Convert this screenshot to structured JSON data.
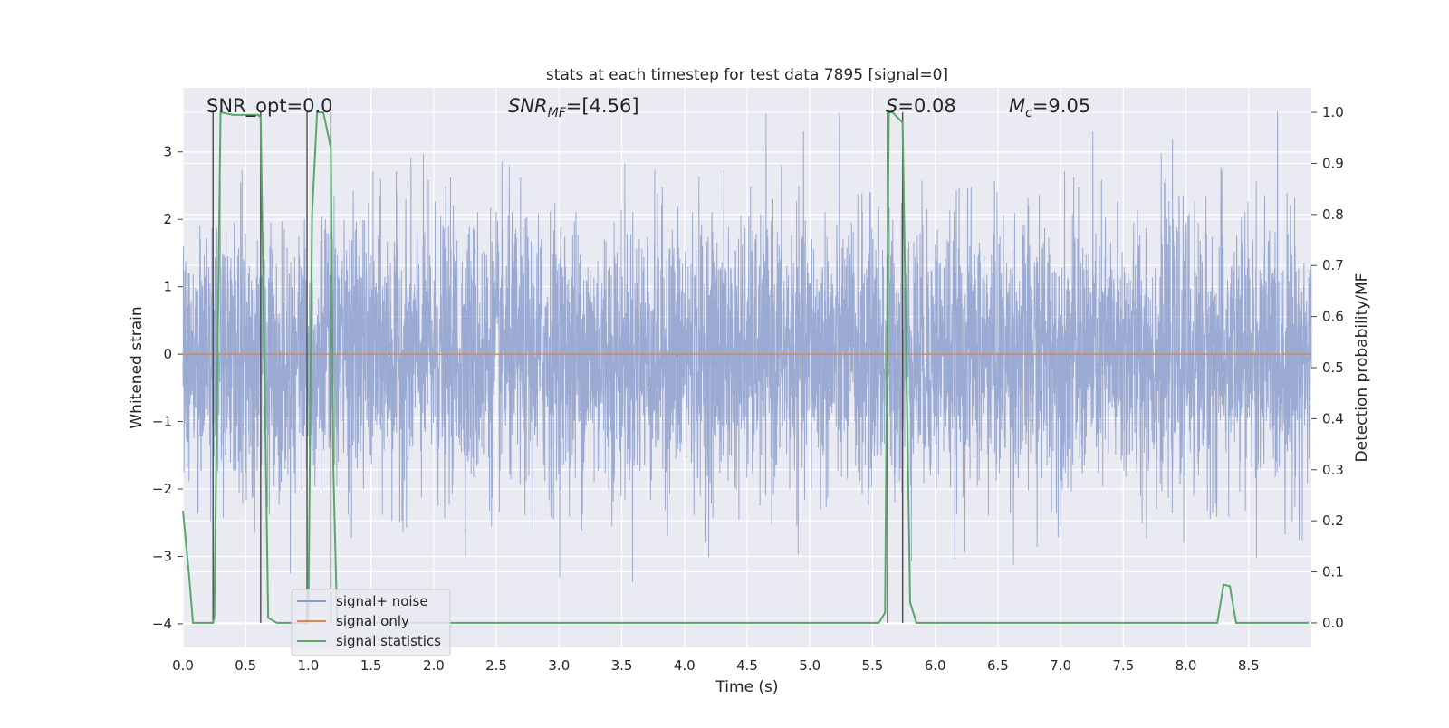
{
  "chart_data": {
    "type": "line",
    "title": "stats at each timestep for test data 7895 [signal=0]",
    "xlabel": "Time (s)",
    "ylabel_left": "Whitened strain",
    "ylabel_right": "Detection probability/MF",
    "xlim": [
      0.0,
      9.0
    ],
    "ylim_left": [
      -4.35,
      3.95
    ],
    "ylim_right": [
      -0.048,
      1.048
    ],
    "grid": true,
    "legend_position": "lower-left",
    "x_ticks": [
      "0.0",
      "0.5",
      "1.0",
      "1.5",
      "2.0",
      "2.5",
      "3.0",
      "3.5",
      "4.0",
      "4.5",
      "5.0",
      "5.5",
      "6.0",
      "6.5",
      "7.0",
      "7.5",
      "8.0",
      "8.5"
    ],
    "y_left_ticks": [
      "3",
      "2",
      "1",
      "0",
      "−1",
      "−2",
      "−3",
      "−4"
    ],
    "y_right_ticks": [
      "1.0",
      "0.9",
      "0.8",
      "0.7",
      "0.6",
      "0.5",
      "0.4",
      "0.3",
      "0.2",
      "0.1",
      "0.0"
    ],
    "annotations": {
      "snr_opt": "SNR_opt=0.0",
      "snr_mf_label": "SNR",
      "snr_mf_sub": "MF",
      "snr_mf_value": "=[4.56]",
      "s_label": "S",
      "s_value": "=0.08",
      "mc_label": "M",
      "mc_sub": "c",
      "mc_value": "=9.05"
    },
    "series": [
      {
        "name": "signal+ noise",
        "color": "#8c9fcc",
        "description": "whitened strain noise, approx range -3.6 to 3.6",
        "noise_amplitude": 1.0,
        "noise_max": 3.6
      },
      {
        "name": "signal only",
        "color": "#dd8452",
        "values_constant": 0.0
      },
      {
        "name": "signal statistics",
        "color": "#55a868",
        "axis": "right",
        "points": [
          [
            0.0,
            0.22
          ],
          [
            0.05,
            0.09
          ],
          [
            0.08,
            0.0
          ],
          [
            0.15,
            0.0
          ],
          [
            0.24,
            0.0
          ],
          [
            0.25,
            0.01
          ],
          [
            0.3,
            1.0
          ],
          [
            0.4,
            0.995
          ],
          [
            0.5,
            0.995
          ],
          [
            0.6,
            0.995
          ],
          [
            0.62,
            0.99
          ],
          [
            0.68,
            0.01
          ],
          [
            0.75,
            0.0
          ],
          [
            1.0,
            0.0
          ],
          [
            1.03,
            0.8
          ],
          [
            1.07,
            1.0
          ],
          [
            1.12,
            1.0
          ],
          [
            1.18,
            0.93
          ],
          [
            1.2,
            0.3
          ],
          [
            1.23,
            0.0
          ],
          [
            1.5,
            0.0
          ],
          [
            1.8,
            0.0
          ],
          [
            2.0,
            0.0
          ],
          [
            5.5,
            0.0
          ],
          [
            5.55,
            0.0
          ],
          [
            5.6,
            0.02
          ],
          [
            5.63,
            1.0
          ],
          [
            5.66,
            1.0
          ],
          [
            5.7,
            0.99
          ],
          [
            5.74,
            0.98
          ],
          [
            5.8,
            0.04
          ],
          [
            5.85,
            0.0
          ],
          [
            6.0,
            0.0
          ],
          [
            8.25,
            0.0
          ],
          [
            8.3,
            0.075
          ],
          [
            8.35,
            0.072
          ],
          [
            8.4,
            0.0
          ],
          [
            8.98,
            0.0
          ]
        ]
      }
    ],
    "vertical_markers_x": [
      0.24,
      0.62,
      0.99,
      1.18,
      5.62,
      5.74
    ]
  }
}
